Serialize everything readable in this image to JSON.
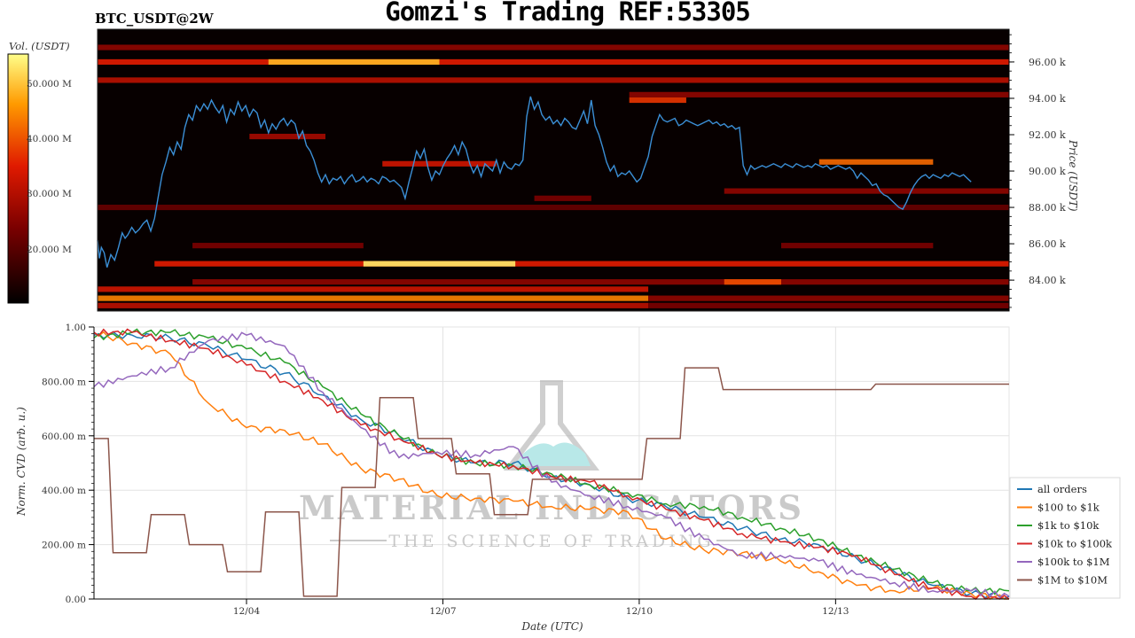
{
  "header": {
    "title": "Gomzi's Trading REF:53305",
    "pair": "BTC_USDT@2W"
  },
  "colorbar": {
    "label": "Vol. (USDT)",
    "ticks": [
      "50.000 M",
      "40.000 M",
      "30.000 M",
      "20.000 M"
    ]
  },
  "watermark": {
    "brand": "MATERIAL INDICATORS",
    "tagline": "THE SCIENCE OF TRADING"
  },
  "chart_data": [
    {
      "type": "heatmap",
      "title": "",
      "ylabel": "Price (USDT)",
      "ylim": [
        82300,
        97800
      ],
      "yticks": [
        84000,
        86000,
        88000,
        90000,
        92000,
        94000,
        96000
      ],
      "ytick_labels": [
        "84.00 k",
        "86.00 k",
        "88.00 k",
        "90.00 k",
        "92.00 k",
        "94.00 k",
        "96.00 k"
      ],
      "colorbar_range_usdt": [
        10000000,
        55000000
      ],
      "price_line_color": "#3b8fd6",
      "price_series": {
        "x_days": [
          0.0,
          0.1,
          0.2,
          0.35,
          0.5,
          0.7,
          0.9,
          1.1,
          1.3,
          1.45,
          1.6,
          1.8,
          2.0,
          2.2,
          2.4,
          2.6,
          2.8,
          3.0,
          3.2,
          3.4,
          3.6,
          3.8,
          4.0,
          4.2,
          4.4,
          4.6,
          4.8,
          5.0,
          5.2,
          5.4,
          5.6,
          5.8,
          6.0,
          6.2,
          6.4,
          6.6,
          6.8,
          7.0,
          7.2,
          7.4,
          7.6,
          7.8,
          8.0,
          8.2,
          8.4,
          8.6,
          8.8,
          9.0,
          9.2,
          9.4,
          9.6,
          9.8,
          10.0,
          10.2,
          10.4,
          10.6,
          10.8,
          11.0,
          11.2,
          11.4,
          11.6,
          11.8,
          12.0,
          12.2,
          12.4,
          12.6,
          12.8,
          13.0,
          13.2,
          13.4,
          13.6,
          13.8,
          14.0,
          14.2,
          14.4,
          14.6,
          14.8,
          15.0,
          15.2,
          15.4,
          15.6,
          15.8,
          16.0,
          16.2,
          16.4,
          16.6,
          16.8,
          17.0,
          17.2,
          17.4,
          17.6,
          17.8,
          18.0,
          18.2,
          18.4,
          18.6,
          18.8,
          19.0,
          19.2,
          19.4,
          19.6,
          19.8,
          20.0,
          20.2,
          20.4,
          20.6,
          20.8,
          21.0,
          21.2,
          21.4,
          21.6,
          21.8,
          22.0,
          22.2,
          22.4,
          22.6,
          22.8,
          23.0,
          23.2,
          23.4,
          23.6,
          23.8,
          24.0,
          24.2,
          24.4,
          24.6,
          24.8,
          25.0,
          25.2,
          25.4,
          25.6,
          25.8,
          26.0,
          26.2,
          26.4,
          26.6,
          26.8,
          27.0,
          27.2,
          27.4,
          27.6,
          27.8,
          28.0,
          28.2,
          28.4,
          28.6,
          28.8,
          29.0,
          29.2,
          29.4,
          29.6,
          29.8,
          30.0,
          30.2,
          30.4,
          30.6,
          30.8,
          31.0,
          31.2,
          31.4,
          31.6,
          31.8,
          32.0,
          32.2,
          32.4,
          32.6,
          32.8,
          33.0,
          33.2,
          33.4,
          33.6,
          33.8,
          34.0,
          34.2,
          34.4,
          34.6,
          34.8,
          35.0,
          35.2,
          35.4,
          35.6,
          35.8,
          36.0,
          36.2,
          36.4,
          36.6,
          36.8,
          37.0,
          37.2,
          37.4,
          37.6,
          37.8,
          38.0,
          38.2,
          38.4,
          38.6,
          38.8,
          39.0,
          39.2,
          39.4,
          39.6,
          39.8,
          40.0,
          40.2,
          40.4,
          40.6,
          40.8,
          41.0,
          41.2,
          41.4,
          41.6,
          41.8,
          42.0,
          42.2,
          42.4,
          42.6,
          42.8,
          43.0,
          43.2,
          43.4,
          43.6,
          43.8,
          44.0,
          44.2,
          44.4,
          44.6,
          44.8,
          45.0,
          45.2,
          45.4,
          45.6,
          45.8,
          46.0,
          46.2,
          46.4,
          46.6,
          46.8,
          47.0,
          47.2,
          47.4,
          47.6,
          47.8,
          48.0
        ],
        "price": [
          86200,
          85200,
          85800,
          85500,
          84700,
          85400,
          85100,
          85800,
          86600,
          86300,
          86500,
          86900,
          86600,
          86800,
          87100,
          87300,
          86700,
          87400,
          88600,
          89800,
          90500,
          91300,
          90900,
          91600,
          91200,
          92400,
          93100,
          92800,
          93600,
          93300,
          93700,
          93400,
          93900,
          93500,
          93200,
          93600,
          92700,
          93400,
          93100,
          93800,
          93300,
          93600,
          93000,
          93400,
          93200,
          92400,
          92800,
          92100,
          92600,
          92300,
          92700,
          92900,
          92500,
          92800,
          92600,
          91800,
          92200,
          91400,
          91100,
          90600,
          89900,
          89400,
          89800,
          89300,
          89600,
          89500,
          89700,
          89300,
          89600,
          89800,
          89400,
          89500,
          89700,
          89400,
          89600,
          89500,
          89300,
          89700,
          89600,
          89400,
          89500,
          89300,
          89100,
          88500,
          89400,
          90200,
          91100,
          90700,
          91200,
          90200,
          89500,
          90000,
          89800,
          90300,
          90700,
          91000,
          91400,
          90900,
          91600,
          91200,
          90400,
          89900,
          90300,
          89700,
          90400,
          90200,
          90000,
          90600,
          89900,
          90500,
          90200,
          90100,
          90400,
          90300,
          90600,
          93000,
          94100,
          93400,
          93800,
          93100,
          92800,
          93000,
          92600,
          92800,
          92500,
          92900,
          92700,
          92400,
          92300,
          92800,
          93300,
          92600,
          93900,
          92500,
          92000,
          91300,
          90500,
          90000,
          90300,
          89700,
          89900,
          89800,
          90000,
          89700,
          89400,
          89600,
          90200,
          90800,
          91900,
          92500,
          93100,
          92800,
          92700,
          92800,
          92900,
          92500,
          92600,
          92800,
          92700,
          92600,
          92500,
          92600,
          92700,
          92800,
          92600,
          92700,
          92500,
          92600,
          92400,
          92500,
          92300,
          92400,
          90300,
          89800,
          90300,
          90100,
          90200,
          90300,
          90200,
          90300,
          90400,
          90300,
          90200,
          90400,
          90300,
          90200,
          90400,
          90300,
          90200,
          90300,
          90200,
          90400,
          90300,
          90200,
          90300,
          90100,
          90200,
          90300,
          90200,
          90100,
          90200,
          90000,
          89600,
          89900,
          89700,
          89500,
          89200,
          89300,
          88900,
          88700,
          88600,
          88400,
          88200,
          88000,
          87900,
          88300,
          88800,
          89200,
          89500,
          89700,
          89800,
          89600,
          89800,
          89700,
          89600,
          89800,
          89700,
          89900,
          89800,
          89700,
          89800,
          89600,
          89400
        ]
      },
      "bands": [
        {
          "price": 96800,
          "from": 0,
          "to": 48,
          "intensity": 0.35
        },
        {
          "price": 96000,
          "from": 0,
          "to": 48,
          "intensity": 0.55
        },
        {
          "price": 96000,
          "from": 9,
          "to": 18,
          "intensity": 0.85
        },
        {
          "price": 95000,
          "from": 0,
          "to": 48,
          "intensity": 0.45
        },
        {
          "price": 94200,
          "from": 28,
          "to": 48,
          "intensity": 0.35
        },
        {
          "price": 93900,
          "from": 28,
          "to": 31,
          "intensity": 0.6
        },
        {
          "price": 91900,
          "from": 8,
          "to": 12,
          "intensity": 0.4
        },
        {
          "price": 90500,
          "from": 38,
          "to": 44,
          "intensity": 0.7
        },
        {
          "price": 90400,
          "from": 15,
          "to": 21,
          "intensity": 0.5
        },
        {
          "price": 88900,
          "from": 33,
          "to": 48,
          "intensity": 0.35
        },
        {
          "price": 88500,
          "from": 23,
          "to": 26,
          "intensity": 0.3
        },
        {
          "price": 88000,
          "from": 0,
          "to": 48,
          "intensity": 0.25
        },
        {
          "price": 85900,
          "from": 5,
          "to": 14,
          "intensity": 0.3
        },
        {
          "price": 85900,
          "from": 36,
          "to": 44,
          "intensity": 0.3
        },
        {
          "price": 84900,
          "from": 3,
          "to": 48,
          "intensity": 0.55
        },
        {
          "price": 84900,
          "from": 14,
          "to": 22,
          "intensity": 0.95
        },
        {
          "price": 83900,
          "from": 5,
          "to": 48,
          "intensity": 0.35
        },
        {
          "price": 83900,
          "from": 33,
          "to": 36,
          "intensity": 0.65
        },
        {
          "price": 83500,
          "from": 0,
          "to": 29,
          "intensity": 0.5
        },
        {
          "price": 83000,
          "from": 0,
          "to": 29,
          "intensity": 0.75
        },
        {
          "price": 83000,
          "from": 29,
          "to": 48,
          "intensity": 0.35
        },
        {
          "price": 82600,
          "from": 0,
          "to": 29,
          "intensity": 0.45
        },
        {
          "price": 82600,
          "from": 29,
          "to": 48,
          "intensity": 0.3
        }
      ]
    },
    {
      "type": "line",
      "title": "",
      "xlabel": "Date (UTC)",
      "ylabel": "Norm. CVD (arb. u.)",
      "ylim": [
        0,
        1
      ],
      "xlim_days": [
        0,
        48
      ],
      "xtick_days": [
        8,
        18.3,
        28.6,
        38.9
      ],
      "xtick_labels": [
        "12/04",
        "12/07",
        "12/10",
        "12/13"
      ],
      "ytick_values": [
        0,
        0.2,
        0.4,
        0.6,
        0.8,
        1.0
      ],
      "ytick_labels": [
        "0.00",
        "200.00 m",
        "400.00 m",
        "600.00 m",
        "800.00 m",
        "1.00"
      ],
      "grid": true,
      "legend_position": "bottom-right",
      "x": [
        0,
        2,
        4,
        6,
        8,
        10,
        12,
        14,
        16,
        18,
        20,
        22,
        24,
        26,
        28,
        30,
        32,
        34,
        36,
        38,
        40,
        42,
        44,
        46,
        48
      ],
      "series": [
        {
          "name": "all orders",
          "color": "#1f77b4",
          "values": [
            0.97,
            0.97,
            0.96,
            0.93,
            0.88,
            0.83,
            0.75,
            0.66,
            0.6,
            0.53,
            0.5,
            0.5,
            0.45,
            0.42,
            0.37,
            0.34,
            0.3,
            0.26,
            0.22,
            0.2,
            0.15,
            0.1,
            0.05,
            0.02,
            0.01
          ]
        },
        {
          "name": "$100 to $1k",
          "color": "#ff7f0e",
          "values": [
            0.98,
            0.94,
            0.9,
            0.72,
            0.63,
            0.62,
            0.57,
            0.48,
            0.44,
            0.38,
            0.37,
            0.36,
            0.34,
            0.33,
            0.32,
            0.22,
            0.18,
            0.17,
            0.14,
            0.1,
            0.05,
            0.03,
            0.04,
            0.02,
            0.0
          ]
        },
        {
          "name": "$1k to $10k",
          "color": "#2ca02c",
          "values": [
            0.96,
            0.98,
            0.98,
            0.96,
            0.92,
            0.87,
            0.78,
            0.68,
            0.6,
            0.53,
            0.5,
            0.49,
            0.46,
            0.42,
            0.39,
            0.35,
            0.34,
            0.3,
            0.26,
            0.22,
            0.16,
            0.11,
            0.06,
            0.03,
            0.03
          ]
        },
        {
          "name": "$10k to $100k",
          "color": "#d62728",
          "values": [
            0.98,
            0.98,
            0.95,
            0.92,
            0.86,
            0.8,
            0.73,
            0.64,
            0.59,
            0.53,
            0.5,
            0.49,
            0.45,
            0.43,
            0.38,
            0.33,
            0.29,
            0.24,
            0.21,
            0.19,
            0.16,
            0.09,
            0.04,
            0.01,
            0.0
          ]
        },
        {
          "name": "$100k to $1M",
          "color": "#9467bd",
          "values": [
            0.78,
            0.82,
            0.85,
            0.95,
            0.97,
            0.93,
            0.76,
            0.63,
            0.52,
            0.54,
            0.53,
            0.56,
            0.43,
            0.38,
            0.34,
            0.3,
            0.22,
            0.16,
            0.16,
            0.14,
            0.09,
            0.06,
            0.03,
            0.03,
            0.01
          ]
        },
        {
          "name": "$1M to $10M",
          "color": "#8c564b",
          "values": [
            0.59,
            0.17,
            0.31,
            0.2,
            0.1,
            0.32,
            0.01,
            0.41,
            0.74,
            0.59,
            0.46,
            0.31,
            0.44,
            0.44,
            0.44,
            0.59,
            0.85,
            0.77,
            0.77,
            0.77,
            0.77,
            0.79,
            0.79,
            0.79,
            0.79
          ]
        }
      ]
    }
  ]
}
